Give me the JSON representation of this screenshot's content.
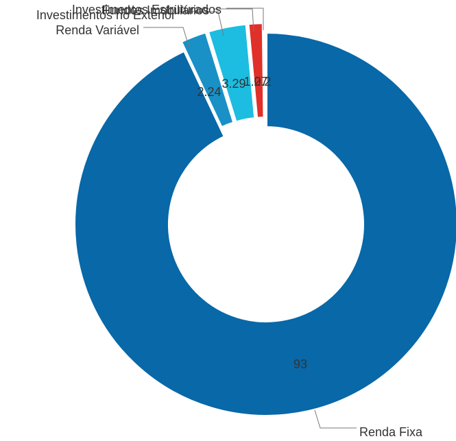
{
  "chart_data": {
    "type": "pie",
    "donut": true,
    "categories": [
      "Renda Fixa",
      "Renda Variável",
      "Investimentos no Exterior",
      "Fundos Imobiliários",
      "Investimentos Estruturados"
    ],
    "values": [
      93,
      2.24,
      3.29,
      1.27,
      0.2
    ],
    "value_labels": [
      "93",
      "2.24",
      "3.29",
      "1.27",
      "0.2"
    ],
    "colors": [
      "#0868a8",
      "#1990c6",
      "#1cbde0",
      "#e0302a",
      "#d42a2a"
    ],
    "legend": "none",
    "title": ""
  }
}
